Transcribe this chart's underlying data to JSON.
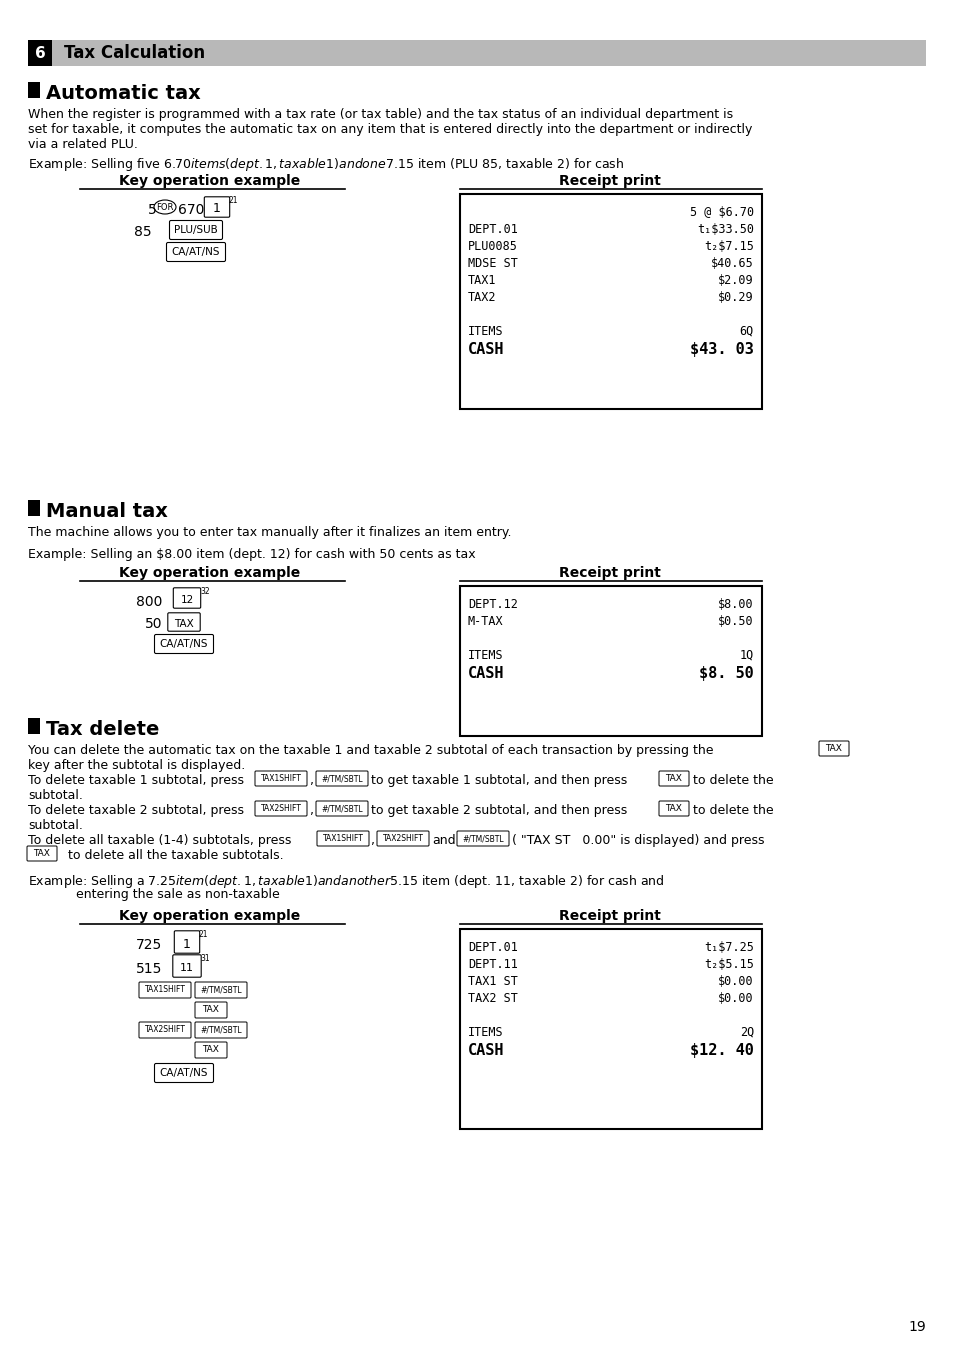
{
  "page_number": "19",
  "bg_color": "#ffffff",
  "header_bg": "#b0b0b0",
  "header_num": "6",
  "header_title": "Tax Calculation",
  "section1_title": "Automatic tax",
  "section1_body1": "When the register is programmed with a tax rate (or tax table) and the tax status of an individual department is",
  "section1_body2": "set for taxable, it computes the automatic tax on any item that is entered directly into the department or indirectly",
  "section1_body3": "via a related PLU.",
  "section1_example": "Example: Selling five $6.70 items (dept. 1, taxable 1) and one $7.15 item (PLU 85, taxable 2) for cash",
  "section1_key_title": "Key operation example",
  "section1_receipt_title": "Receipt print",
  "section2_title": "Manual tax",
  "section2_body1": "The machine allows you to enter tax manually after it finalizes an item entry.",
  "section2_example": "Example: Selling an $8.00 item (dept. 12) for cash with 50 cents as tax",
  "section2_key_title": "Key operation example",
  "section2_receipt_title": "Receipt print",
  "section3_title": "Tax delete",
  "section3_example": "Example: Selling a $7.25 item (dept. 1, taxable 1) and another $5.15 item (dept. 11, taxable 2) for cash and",
  "section3_example2": "            entering the sale as non-taxable",
  "section3_key_title": "Key operation example",
  "section3_receipt_title": "Receipt print"
}
